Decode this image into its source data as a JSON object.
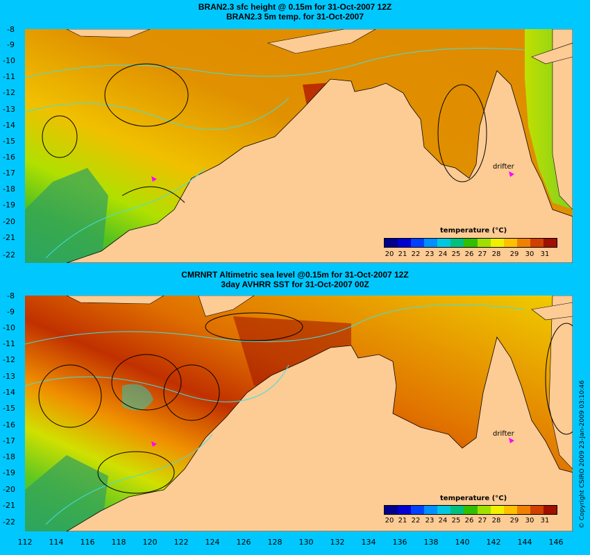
{
  "top_panel": {
    "title_line1": "BRAN2.3 sfc height @ 0.15m for 31-Oct-2007 12Z",
    "title_line2": "BRAN2.3 5m temp. for 31-Oct-2007",
    "drifter_label": "drifter"
  },
  "bottom_panel": {
    "title_line1": "CMRNRT Altimetric sea level  @0.15m  for 31-Oct-2007 12Z",
    "title_line2": "3day AVHRR SST for 31-Oct-2007 00Z",
    "drifter_label": "drifter"
  },
  "axes": {
    "lat_ticks": [
      "-8",
      "-9",
      "-10",
      "-11",
      "-12",
      "-13",
      "-14",
      "-15",
      "-16",
      "-17",
      "-18",
      "-19",
      "-20",
      "-21",
      "-22"
    ],
    "lon_ticks": [
      "112",
      "114",
      "116",
      "118",
      "120",
      "122",
      "124",
      "126",
      "128",
      "130",
      "132",
      "134",
      "136",
      "138",
      "140",
      "142",
      "144",
      "146"
    ],
    "lat_range": [
      -22.5,
      -8
    ],
    "lon_range": [
      112,
      147
    ]
  },
  "colorbar": {
    "title": "temperature (°C)",
    "ticks": [
      "20",
      "21",
      "22",
      "23",
      "24",
      "25",
      "26",
      "27",
      "28",
      "29",
      "30",
      "31"
    ],
    "colors": [
      "#00008c",
      "#0000d0",
      "#0040ff",
      "#0090ff",
      "#00c8e0",
      "#00c080",
      "#30c000",
      "#a0e000",
      "#f0f000",
      "#ffc000",
      "#f08000",
      "#d04000",
      "#a01000"
    ]
  },
  "map_colors": {
    "land": "#fdcb94",
    "contour_dark": "#000000",
    "contour_cyan": "#40e0e0",
    "drifter_marker": "#ff00ff"
  },
  "copyright": "© Copyright CSIRO 2009   23-Jan-2009 03:10:46"
}
